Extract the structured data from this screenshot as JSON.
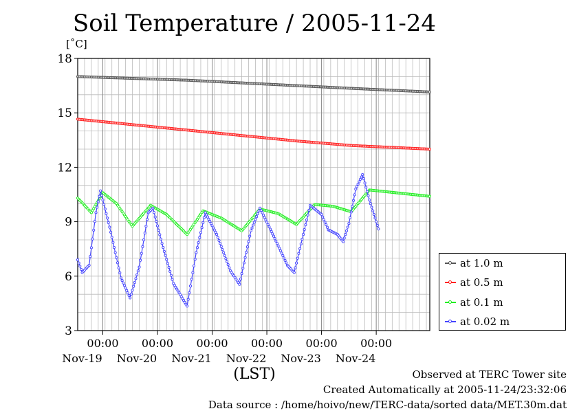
{
  "header": {
    "title": "Soil Temperature / 2005-11-24",
    "unit": "[˚C]"
  },
  "footer": {
    "observed": "Observed at TERC Tower site",
    "created": "Created Automatically at 2005-11-24/23:32:06",
    "source": "Data source : /home/hoivo/new/TERC-data/sorted  data/MET.30m.dat"
  },
  "chart_data": {
    "type": "line",
    "title": "Soil Temperature / 2005-11-24",
    "ylabel": "[˚C]",
    "xlabel": "(LST)",
    "ylim": [
      3,
      18
    ],
    "xlim": [
      "2005-11-18 13:00",
      "2005-11-24 23:30"
    ],
    "yticks": [
      "3",
      "6",
      "9",
      "12",
      "15",
      "18"
    ],
    "xticks": [
      {
        "time": "2005-11-19 00:00",
        "label": "00:00",
        "day": "Nov-19"
      },
      {
        "time": "2005-11-20 00:00",
        "label": "00:00",
        "day": "Nov-20"
      },
      {
        "time": "2005-11-21 00:00",
        "label": "00:00",
        "day": "Nov-21"
      },
      {
        "time": "2005-11-22 00:00",
        "label": "00:00",
        "day": "Nov-22"
      },
      {
        "time": "2005-11-23 00:00",
        "label": "00:00",
        "day": "Nov-23"
      },
      {
        "time": "2005-11-24 00:00",
        "label": "00:00",
        "day": "Nov-24"
      }
    ],
    "grid": true,
    "legend_position": "right",
    "series": [
      {
        "name": "at 1.0 m",
        "color": "#555555",
        "points": [
          [
            "2005-11-18 13:00",
            17.0
          ],
          [
            "2005-11-19 13:00",
            16.9
          ],
          [
            "2005-11-20 13:00",
            16.8
          ],
          [
            "2005-11-21 13:00",
            16.65
          ],
          [
            "2005-11-22 13:00",
            16.5
          ],
          [
            "2005-11-23 13:00",
            16.35
          ],
          [
            "2005-11-24 23:30",
            16.15
          ]
        ]
      },
      {
        "name": "at 0.5 m",
        "color": "#ff2222",
        "points": [
          [
            "2005-11-18 13:00",
            14.65
          ],
          [
            "2005-11-19 13:00",
            14.35
          ],
          [
            "2005-11-20 13:00",
            14.05
          ],
          [
            "2005-11-21 13:00",
            13.75
          ],
          [
            "2005-11-22 13:00",
            13.45
          ],
          [
            "2005-11-23 13:00",
            13.2
          ],
          [
            "2005-11-24 23:30",
            13.0
          ]
        ]
      },
      {
        "name": "at 0.1 m",
        "color": "#22ee22",
        "points": [
          [
            "2005-11-18 13:00",
            10.3
          ],
          [
            "2005-11-18 19:00",
            9.5
          ],
          [
            "2005-11-19 00:00",
            10.6
          ],
          [
            "2005-11-19 06:00",
            10.0
          ],
          [
            "2005-11-19 13:00",
            8.75
          ],
          [
            "2005-11-19 21:00",
            9.9
          ],
          [
            "2005-11-20 04:00",
            9.4
          ],
          [
            "2005-11-20 13:00",
            8.3
          ],
          [
            "2005-11-20 20:00",
            9.6
          ],
          [
            "2005-11-21 04:00",
            9.2
          ],
          [
            "2005-11-21 13:00",
            8.5
          ],
          [
            "2005-11-21 21:00",
            9.7
          ],
          [
            "2005-11-22 05:00",
            9.45
          ],
          [
            "2005-11-22 13:00",
            8.85
          ],
          [
            "2005-11-22 21:00",
            9.95
          ],
          [
            "2005-11-23 05:00",
            9.85
          ],
          [
            "2005-11-23 13:00",
            9.55
          ],
          [
            "2005-11-23 21:00",
            10.75
          ],
          [
            "2005-11-24 23:30",
            10.4
          ]
        ]
      },
      {
        "name": "at 0.02 m",
        "color": "#4444ff",
        "points": [
          [
            "2005-11-18 13:00",
            6.9
          ],
          [
            "2005-11-18 15:00",
            6.2
          ],
          [
            "2005-11-18 18:00",
            6.6
          ],
          [
            "2005-11-18 21:00",
            9.5
          ],
          [
            "2005-11-18 23:00",
            10.7
          ],
          [
            "2005-11-19 03:00",
            8.7
          ],
          [
            "2005-11-19 08:00",
            5.9
          ],
          [
            "2005-11-19 12:00",
            4.8
          ],
          [
            "2005-11-19 16:00",
            6.5
          ],
          [
            "2005-11-19 20:00",
            9.5
          ],
          [
            "2005-11-19 22:00",
            9.75
          ],
          [
            "2005-11-20 02:00",
            7.8
          ],
          [
            "2005-11-20 07:00",
            5.6
          ],
          [
            "2005-11-20 13:00",
            4.35
          ],
          [
            "2005-11-20 17:00",
            7.3
          ],
          [
            "2005-11-20 21:00",
            9.5
          ],
          [
            "2005-11-21 02:00",
            8.3
          ],
          [
            "2005-11-21 08:00",
            6.3
          ],
          [
            "2005-11-21 12:00",
            5.55
          ],
          [
            "2005-11-21 17:00",
            8.5
          ],
          [
            "2005-11-21 21:00",
            9.75
          ],
          [
            "2005-11-22 03:00",
            8.2
          ],
          [
            "2005-11-22 09:00",
            6.6
          ],
          [
            "2005-11-22 12:00",
            6.2
          ],
          [
            "2005-11-22 16:00",
            8.3
          ],
          [
            "2005-11-22 19:00",
            9.9
          ],
          [
            "2005-11-23 00:00",
            9.4
          ],
          [
            "2005-11-23 03:00",
            8.55
          ],
          [
            "2005-11-23 07:00",
            8.3
          ],
          [
            "2005-11-23 09:30",
            7.9
          ],
          [
            "2005-11-23 12:00",
            8.9
          ],
          [
            "2005-11-23 15:00",
            10.8
          ],
          [
            "2005-11-23 18:00",
            11.6
          ],
          [
            "2005-11-23 21:00",
            10.2
          ],
          [
            "2005-11-24 01:00",
            8.6
          ]
        ]
      }
    ]
  }
}
